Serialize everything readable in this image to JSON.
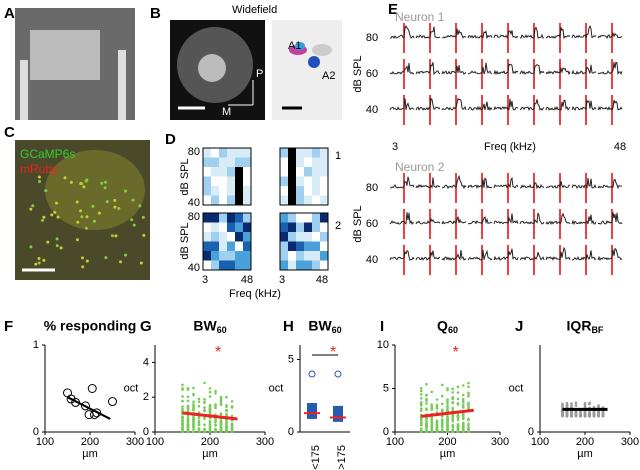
{
  "panels": {
    "A": {
      "label": "A"
    },
    "B": {
      "label": "B",
      "title": "Widefield",
      "areas": [
        "A1",
        "A2"
      ],
      "compass": [
        "P",
        "M"
      ]
    },
    "C": {
      "label": "C",
      "legend": [
        "GCaMP6s",
        "mRuby"
      ]
    },
    "D": {
      "label": "D",
      "ylabel": "dB SPL",
      "xlabel": "Freq (kHz)",
      "yticks": [
        80,
        40
      ],
      "xticks": [
        3,
        48
      ],
      "rows": [
        "1",
        "2"
      ]
    },
    "E": {
      "label": "E",
      "neurons": [
        "Neuron 1",
        "Neuron 2"
      ],
      "ylabel": "dB SPL",
      "yticks": [
        80,
        60,
        40
      ],
      "xlabel": "Freq (kHz)",
      "xticks": [
        3,
        48
      ]
    },
    "F": {
      "label": "F",
      "title": "% responding",
      "xlabel": "µm",
      "xlim": [
        100,
        300
      ],
      "xticks": [
        100,
        200,
        300
      ],
      "ylim": [
        0,
        1
      ],
      "yticks": [
        0,
        1
      ],
      "x": [
        150,
        158,
        168,
        190,
        198,
        205,
        210,
        215,
        250
      ],
      "y": [
        0.45,
        0.38,
        0.34,
        0.3,
        0.2,
        0.5,
        0.2,
        0.22,
        0.35
      ],
      "fit": {
        "x": [
          150,
          245
        ],
        "y": [
          0.4,
          0.15
        ]
      }
    },
    "G": {
      "label": "G",
      "title": "BW",
      "title_sub": "60",
      "ylabel": "oct",
      "xlabel": "µm",
      "star": "*",
      "xlim": [
        100,
        300
      ],
      "xticks": [
        100,
        200,
        300
      ],
      "ylim": [
        0,
        5
      ],
      "yticks": [
        0,
        2,
        4
      ],
      "fit": {
        "x": [
          150,
          250
        ],
        "y": [
          1.1,
          0.75
        ]
      }
    },
    "H": {
      "label": "H",
      "title": "BW",
      "title_sub": "60",
      "ylabel": "oct",
      "star": "*",
      "categories": [
        "<175",
        ">175"
      ],
      "ylim": [
        0,
        6
      ],
      "yticks": [
        0,
        5
      ],
      "median": [
        1.3,
        1.0
      ],
      "q1": [
        0.9,
        0.7
      ],
      "q3": [
        2.0,
        1.8
      ]
    },
    "I": {
      "label": "I",
      "title": "Q",
      "title_sub": "60",
      "xlabel": "µm",
      "star": "*",
      "xlim": [
        100,
        300
      ],
      "xticks": [
        100,
        200,
        300
      ],
      "ylim": [
        0,
        10
      ],
      "yticks": [
        0,
        5,
        10
      ],
      "fit": {
        "x": [
          150,
          250
        ],
        "y": [
          1.8,
          2.5
        ]
      }
    },
    "J": {
      "label": "J",
      "title": "IQR",
      "title_sub": "BF",
      "ylabel": "oct",
      "xlabel": "µm",
      "xlim": [
        100,
        300
      ],
      "xticks": [
        100,
        200,
        300
      ],
      "ylim": [
        0,
        5
      ],
      "yticks": [
        0
      ],
      "fit": {
        "x": [
          150,
          250
        ],
        "y": [
          1.3,
          1.3
        ]
      }
    }
  }
}
